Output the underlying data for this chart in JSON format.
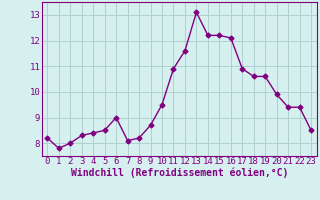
{
  "x": [
    0,
    1,
    2,
    3,
    4,
    5,
    6,
    7,
    8,
    9,
    10,
    11,
    12,
    13,
    14,
    15,
    16,
    17,
    18,
    19,
    20,
    21,
    22,
    23
  ],
  "y": [
    8.2,
    7.8,
    8.0,
    8.3,
    8.4,
    8.5,
    9.0,
    8.1,
    8.2,
    8.7,
    9.5,
    10.9,
    11.6,
    13.1,
    12.2,
    12.2,
    12.1,
    10.9,
    10.6,
    10.6,
    9.9,
    9.4,
    9.4,
    8.5
  ],
  "line_color": "#800080",
  "marker": "D",
  "markersize": 2.5,
  "linewidth": 1.0,
  "bg_color": "#d6f0f0",
  "grid_color": "#b0cfcf",
  "xlabel": "Windchill (Refroidissement éolien,°C)",
  "xlabel_color": "#800080",
  "xlabel_fontsize": 7,
  "tick_color": "#800080",
  "tick_fontsize": 6.5,
  "ylim": [
    7.5,
    13.5
  ],
  "yticks": [
    8,
    9,
    10,
    11,
    12,
    13
  ],
  "xticks": [
    0,
    1,
    2,
    3,
    4,
    5,
    6,
    7,
    8,
    9,
    10,
    11,
    12,
    13,
    14,
    15,
    16,
    17,
    18,
    19,
    20,
    21,
    22,
    23
  ]
}
